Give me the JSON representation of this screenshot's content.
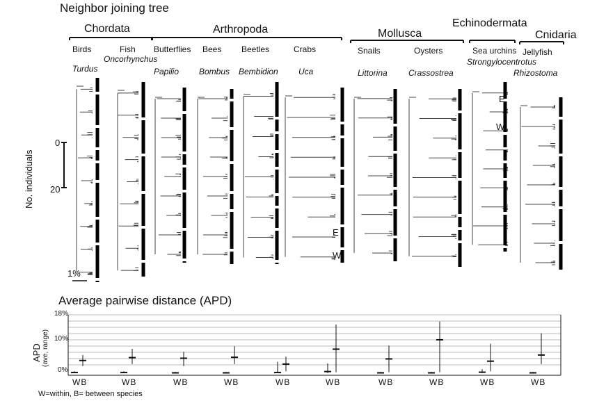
{
  "top_title": "Neighbor joining tree",
  "phyla": [
    "Chordata",
    "Arthropoda",
    "Mollusca",
    "Echinodermata",
    "Cnidaria"
  ],
  "groups": [
    {
      "common": "Birds",
      "genus": "Turdus"
    },
    {
      "common": "Fish",
      "genus": "Oncorhynchus"
    },
    {
      "common": "Butterflies",
      "genus": "Papilio"
    },
    {
      "common": "Bees",
      "genus": "Bombus"
    },
    {
      "common": "Beetles",
      "genus": "Bembidion"
    },
    {
      "common": "Crabs",
      "genus": "Uca"
    },
    {
      "common": "Snails",
      "genus": "Littorina"
    },
    {
      "common": "Oysters",
      "genus": "Crassostrea"
    },
    {
      "common": "Sea urchins",
      "genus": "Strongylocentrotus"
    },
    {
      "common": "Jellyfish",
      "genus": "Rhizostoma"
    }
  ],
  "tree_axis": {
    "label": "No. individuals",
    "ticks": [
      "0",
      "20"
    ],
    "scale_label": "1%"
  },
  "urchin_markers": [
    "E",
    "W"
  ],
  "crab_markers": [
    "E",
    "W"
  ],
  "apd": {
    "title": "Average pairwise distance (APD)",
    "ylabel": "APD",
    "ylabel_sub": "(ave, range)",
    "yticks": [
      "18%",
      "10%",
      "0%"
    ],
    "pair_label": "WB",
    "footnote": "W=within, B= between species"
  },
  "chart_data": {
    "type": "scatter",
    "title": "Average pairwise distance (APD)",
    "ylabel": "APD (ave, range)",
    "ylim": [
      0,
      18
    ],
    "categories": [
      "Turdus",
      "Oncorhynchus",
      "Papilio",
      "Bombus",
      "Bembidion",
      "Uca",
      "Littorina",
      "Crassostrea",
      "Strongylocentrotus",
      "Rhizostoma"
    ],
    "series": [
      {
        "name": "W",
        "avg": [
          0.2,
          0.2,
          0.1,
          0.1,
          0.2,
          0.5,
          0.1,
          0.1,
          0.3,
          0.1
        ],
        "min": [
          0,
          0,
          0,
          0,
          0,
          0,
          0,
          0,
          0,
          0
        ],
        "max": [
          0.6,
          0.6,
          0.4,
          0.4,
          3.5,
          3.0,
          0.4,
          0.4,
          1.2,
          0.4
        ]
      },
      {
        "name": "B",
        "avg": [
          3.9,
          4.8,
          4.6,
          4.9,
          2.8,
          7.4,
          4.4,
          10.3,
          3.7,
          5.6
        ],
        "min": [
          2.2,
          2.8,
          2.2,
          2.8,
          0.6,
          0.3,
          0.3,
          0.3,
          0.6,
          2.8
        ],
        "max": [
          5.6,
          7.5,
          6.6,
          8.3,
          5.1,
          15.0,
          8.5,
          15.9,
          9.1,
          12.3
        ]
      }
    ]
  }
}
